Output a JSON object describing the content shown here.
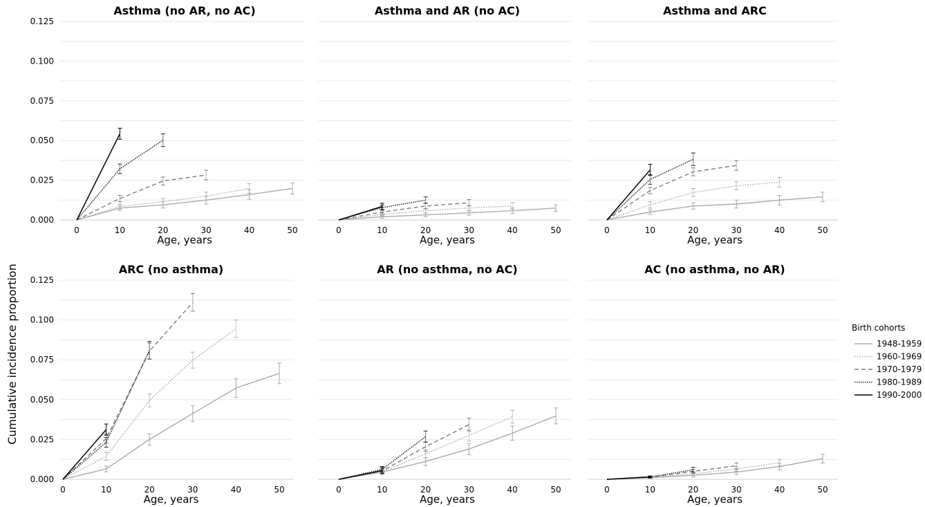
{
  "ylabel": "Cumulative incidence proportion",
  "legend": {
    "title": "Birth cohorts",
    "entries": [
      "1948-1959",
      "1960-1969",
      "1970-1979",
      "1980-1989",
      "1990-2000"
    ]
  },
  "series_styles": [
    {
      "name": "1948-1959",
      "color": "#aaaaaa",
      "dash": "none",
      "width": 1.4
    },
    {
      "name": "1960-1969",
      "color": "#aaaaaa",
      "dash": "1.5 2",
      "width": 1.5
    },
    {
      "name": "1970-1979",
      "color": "#7a7a7a",
      "dash": "6 4",
      "width": 1.4
    },
    {
      "name": "1980-1989",
      "color": "#222222",
      "dash": "1.5 1.5",
      "width": 1.5
    },
    {
      "name": "1990-2000",
      "color": "#000000",
      "dash": "none",
      "width": 1.5
    }
  ],
  "chart_data": [
    {
      "type": "line",
      "title": "Asthma (no AR, no AC)",
      "xlabel": "Age, years",
      "x_ticks": [
        0,
        10,
        20,
        30,
        40,
        50
      ],
      "y_ticks": [
        "0.000",
        "0.025",
        "0.050",
        "0.075",
        "0.100",
        "0.125"
      ],
      "ylim": [
        0,
        0.125
      ],
      "series": [
        {
          "name": "1948-1959",
          "x": [
            0,
            10,
            20,
            30,
            40,
            50
          ],
          "y": [
            0,
            0.0075,
            0.0095,
            0.0125,
            0.016,
            0.0198
          ],
          "err": [
            0,
            0.0015,
            0.002,
            0.0025,
            0.003,
            0.0035
          ]
        },
        {
          "name": "1960-1969",
          "x": [
            0,
            10,
            20,
            30,
            40
          ],
          "y": [
            0,
            0.0085,
            0.0115,
            0.015,
            0.0198
          ],
          "err": [
            0,
            0.0015,
            0.002,
            0.0025,
            0.003
          ]
        },
        {
          "name": "1970-1979",
          "x": [
            0,
            10,
            20,
            30
          ],
          "y": [
            0,
            0.0135,
            0.0245,
            0.0283
          ],
          "err": [
            0,
            0.002,
            0.0025,
            0.003
          ]
        },
        {
          "name": "1980-1989",
          "x": [
            0,
            10,
            20
          ],
          "y": [
            0,
            0.0322,
            0.0502
          ],
          "err": [
            0,
            0.003,
            0.004
          ]
        },
        {
          "name": "1990-2000",
          "x": [
            0,
            10
          ],
          "y": [
            0,
            0.0543
          ],
          "err": [
            0,
            0.0035
          ]
        }
      ]
    },
    {
      "type": "line",
      "title": "Asthma and AR (no AC)",
      "xlabel": "Age, years",
      "x_ticks": [
        0,
        10,
        20,
        30,
        40,
        50
      ],
      "ylim": [
        0,
        0.125
      ],
      "series": [
        {
          "name": "1948-1959",
          "x": [
            0,
            10,
            20,
            30,
            40,
            50
          ],
          "y": [
            0,
            0.002,
            0.0032,
            0.0045,
            0.0058,
            0.0075
          ],
          "err": [
            0,
            0.001,
            0.0012,
            0.0015,
            0.0018,
            0.002
          ]
        },
        {
          "name": "1960-1969",
          "x": [
            0,
            10,
            20,
            30,
            40
          ],
          "y": [
            0,
            0.0035,
            0.0058,
            0.0075,
            0.0088
          ],
          "err": [
            0,
            0.001,
            0.0015,
            0.0018,
            0.002
          ]
        },
        {
          "name": "1970-1979",
          "x": [
            0,
            10,
            20,
            30
          ],
          "y": [
            0,
            0.005,
            0.0088,
            0.0108
          ],
          "err": [
            0,
            0.0012,
            0.0018,
            0.002
          ]
        },
        {
          "name": "1980-1989",
          "x": [
            0,
            10,
            20
          ],
          "y": [
            0,
            0.0078,
            0.0125
          ],
          "err": [
            0,
            0.0015,
            0.002
          ]
        },
        {
          "name": "1990-2000",
          "x": [
            0,
            10
          ],
          "y": [
            0,
            0.0085
          ],
          "err": [
            0,
            0.002
          ]
        }
      ]
    },
    {
      "type": "line",
      "title": "Asthma and ARC",
      "xlabel": "Age, years",
      "x_ticks": [
        0,
        10,
        20,
        30,
        40,
        50
      ],
      "ylim": [
        0,
        0.125
      ],
      "series": [
        {
          "name": "1948-1959",
          "x": [
            0,
            10,
            20,
            30,
            40,
            50
          ],
          "y": [
            0,
            0.005,
            0.0088,
            0.01,
            0.0125,
            0.0145
          ],
          "err": [
            0,
            0.0015,
            0.002,
            0.0025,
            0.003,
            0.003
          ]
        },
        {
          "name": "1960-1969",
          "x": [
            0,
            10,
            20,
            30,
            40
          ],
          "y": [
            0,
            0.0095,
            0.0173,
            0.0215,
            0.0238
          ],
          "err": [
            0,
            0.002,
            0.0025,
            0.0025,
            0.003
          ]
        },
        {
          "name": "1970-1979",
          "x": [
            0,
            10,
            20,
            30
          ],
          "y": [
            0,
            0.0185,
            0.0303,
            0.0343
          ],
          "err": [
            0,
            0.002,
            0.0025,
            0.003
          ]
        },
        {
          "name": "1980-1989",
          "x": [
            0,
            10,
            20
          ],
          "y": [
            0,
            0.0255,
            0.0382
          ],
          "err": [
            0,
            0.003,
            0.004
          ]
        },
        {
          "name": "1990-2000",
          "x": [
            0,
            10
          ],
          "y": [
            0,
            0.0315
          ],
          "err": [
            0,
            0.0035
          ]
        }
      ]
    },
    {
      "type": "line",
      "title": "ARC (no asthma)",
      "xlabel": "Age, years",
      "x_ticks": [
        0,
        10,
        20,
        30,
        40,
        50
      ],
      "y_ticks": [
        "0.000",
        "0.025",
        "0.050",
        "0.075",
        "0.100",
        "0.125"
      ],
      "ylim": [
        0,
        0.125
      ],
      "series": [
        {
          "name": "1948-1959",
          "x": [
            0,
            10,
            20,
            30,
            40,
            50
          ],
          "y": [
            0,
            0.0065,
            0.025,
            0.0413,
            0.0573,
            0.0665
          ],
          "err": [
            0,
            0.0018,
            0.0035,
            0.005,
            0.006,
            0.0065
          ]
        },
        {
          "name": "1960-1969",
          "x": [
            0,
            10,
            20,
            30,
            40
          ],
          "y": [
            0,
            0.0145,
            0.0495,
            0.0748,
            0.0945
          ],
          "err": [
            0,
            0.0025,
            0.004,
            0.005,
            0.0055
          ]
        },
        {
          "name": "1970-1979",
          "x": [
            0,
            10,
            20,
            30
          ],
          "y": [
            0,
            0.0255,
            0.0805,
            0.111
          ],
          "err": [
            0,
            0.003,
            0.005,
            0.0055
          ]
        },
        {
          "name": "1980-1989",
          "x": [
            0,
            10,
            20
          ],
          "y": [
            0,
            0.0232,
            0.081
          ],
          "err": [
            0,
            0.003,
            0.0055
          ]
        },
        {
          "name": "1990-2000",
          "x": [
            0,
            10
          ],
          "y": [
            0,
            0.0312
          ],
          "err": [
            0,
            0.0035
          ]
        }
      ]
    },
    {
      "type": "line",
      "title": "AR (no asthma, no AC)",
      "xlabel": "Age, years",
      "x_ticks": [
        0,
        10,
        20,
        30,
        40,
        50
      ],
      "ylim": [
        0,
        0.125
      ],
      "series": [
        {
          "name": "1948-1959",
          "x": [
            0,
            10,
            20,
            30,
            40,
            50
          ],
          "y": [
            0,
            0.0045,
            0.0112,
            0.019,
            0.029,
            0.0398
          ],
          "err": [
            0,
            0.0012,
            0.0025,
            0.0035,
            0.0045,
            0.005
          ]
        },
        {
          "name": "1960-1969",
          "x": [
            0,
            10,
            20,
            30,
            40
          ],
          "y": [
            0,
            0.0048,
            0.016,
            0.0275,
            0.0393
          ],
          "err": [
            0,
            0.0012,
            0.0025,
            0.0035,
            0.004
          ]
        },
        {
          "name": "1970-1979",
          "x": [
            0,
            10,
            20,
            30
          ],
          "y": [
            0,
            0.0052,
            0.0205,
            0.0343
          ],
          "err": [
            0,
            0.0015,
            0.003,
            0.004
          ]
        },
        {
          "name": "1980-1989",
          "x": [
            0,
            10,
            20
          ],
          "y": [
            0,
            0.0062,
            0.0268
          ],
          "err": [
            0,
            0.0018,
            0.0035
          ]
        },
        {
          "name": "1990-2000",
          "x": [
            0,
            10
          ],
          "y": [
            0,
            0.0055
          ],
          "err": [
            0,
            0.002
          ]
        }
      ]
    },
    {
      "type": "line",
      "title": "AC (no asthma, no AR)",
      "xlabel": "Age, years",
      "x_ticks": [
        0,
        10,
        20,
        30,
        40,
        50
      ],
      "ylim": [
        0,
        0.125
      ],
      "series": [
        {
          "name": "1948-1959",
          "x": [
            0,
            10,
            20,
            30,
            40,
            50
          ],
          "y": [
            0,
            0.001,
            0.0025,
            0.0045,
            0.008,
            0.013
          ],
          "err": [
            0,
            0.0005,
            0.001,
            0.0015,
            0.002,
            0.0028
          ]
        },
        {
          "name": "1960-1969",
          "x": [
            0,
            10,
            20,
            30,
            40
          ],
          "y": [
            0,
            0.0012,
            0.0035,
            0.0065,
            0.0105
          ],
          "err": [
            0,
            0.0005,
            0.001,
            0.0015,
            0.002
          ]
        },
        {
          "name": "1970-1979",
          "x": [
            0,
            10,
            20,
            30
          ],
          "y": [
            0,
            0.0013,
            0.005,
            0.0085
          ],
          "err": [
            0,
            0.0005,
            0.0012,
            0.0018
          ]
        },
        {
          "name": "1980-1989",
          "x": [
            0,
            10,
            20
          ],
          "y": [
            0,
            0.0015,
            0.006
          ],
          "err": [
            0,
            0.0006,
            0.0015
          ]
        },
        {
          "name": "1990-2000",
          "x": [
            0,
            10
          ],
          "y": [
            0,
            0.0015
          ],
          "err": [
            0,
            0.0006
          ]
        }
      ]
    }
  ]
}
